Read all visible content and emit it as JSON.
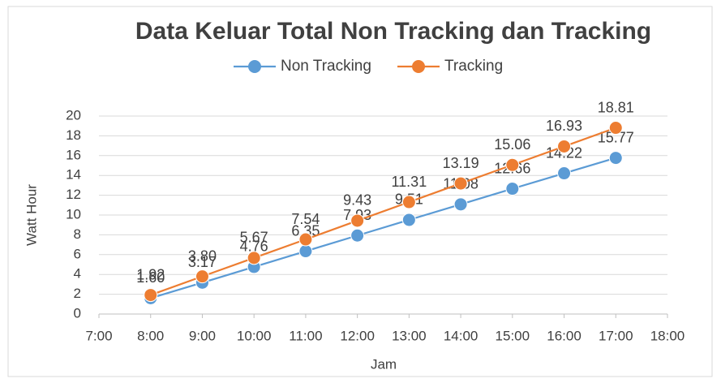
{
  "chart_data": {
    "type": "line",
    "title": "Data Keluar Total Non Tracking dan Tracking",
    "x_label": "Jam",
    "y_label": "Watt Hour",
    "x": [
      8,
      9,
      10,
      11,
      12,
      13,
      14,
      15,
      16,
      17
    ],
    "xlim": [
      7,
      18
    ],
    "xticks": [
      {
        "value": 7,
        "label": "7:00"
      },
      {
        "value": 8,
        "label": "8:00"
      },
      {
        "value": 9,
        "label": "9:00"
      },
      {
        "value": 10,
        "label": "10:00"
      },
      {
        "value": 11,
        "label": "11:00"
      },
      {
        "value": 12,
        "label": "12:00"
      },
      {
        "value": 13,
        "label": "13:00"
      },
      {
        "value": 14,
        "label": "14:00"
      },
      {
        "value": 15,
        "label": "15:00"
      },
      {
        "value": 16,
        "label": "16:00"
      },
      {
        "value": 17,
        "label": "17:00"
      },
      {
        "value": 18,
        "label": "18:00"
      }
    ],
    "ylim": [
      0,
      20
    ],
    "yticks": [
      0,
      2,
      4,
      6,
      8,
      10,
      12,
      14,
      16,
      18,
      20
    ],
    "grid": true,
    "legend": "top",
    "series": [
      {
        "name": "Non Tracking",
        "color": "#5b9bd5",
        "values": [
          1.6,
          3.17,
          4.76,
          6.35,
          7.93,
          9.51,
          11.08,
          12.66,
          14.22,
          15.77
        ],
        "value_labels": [
          "1.60",
          "3.17",
          "4.76",
          "6.35",
          "7.93",
          "9.51",
          "11.08",
          "12.66",
          "14.22",
          "15.77"
        ]
      },
      {
        "name": "Tracking",
        "color": "#ed7d31",
        "values": [
          1.92,
          3.8,
          5.67,
          7.54,
          9.43,
          11.31,
          13.19,
          15.06,
          16.93,
          18.81
        ],
        "value_labels": [
          "1.92",
          "3.80",
          "5.67",
          "7.54",
          "9.43",
          "11.31",
          "13.19",
          "15.06",
          "16.93",
          "18.81"
        ]
      }
    ]
  }
}
